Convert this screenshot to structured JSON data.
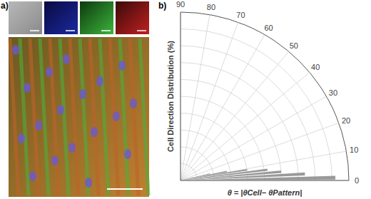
{
  "chart_data": {
    "type": "polar_bar",
    "panels": [
      "a)",
      "b)"
    ],
    "x_label": "θ = |θCell− θPattern|",
    "y_label": "Cell Direction Distribution (%)",
    "x": [
      1,
      3,
      5,
      7,
      9,
      11,
      13,
      15
    ],
    "values": [
      46,
      37,
      30,
      26,
      20,
      14,
      9,
      4
    ],
    "color": "#999999",
    "xlim": [
      0,
      90
    ],
    "xticks": [
      0,
      10,
      20,
      30,
      40,
      50,
      60,
      70,
      80,
      90
    ],
    "ylim": [
      0,
      50
    ],
    "yticks": [
      0,
      5,
      10,
      15,
      20,
      25,
      30,
      35,
      40,
      45,
      50
    ],
    "grid": true,
    "tick_labels": "x"
  }
}
